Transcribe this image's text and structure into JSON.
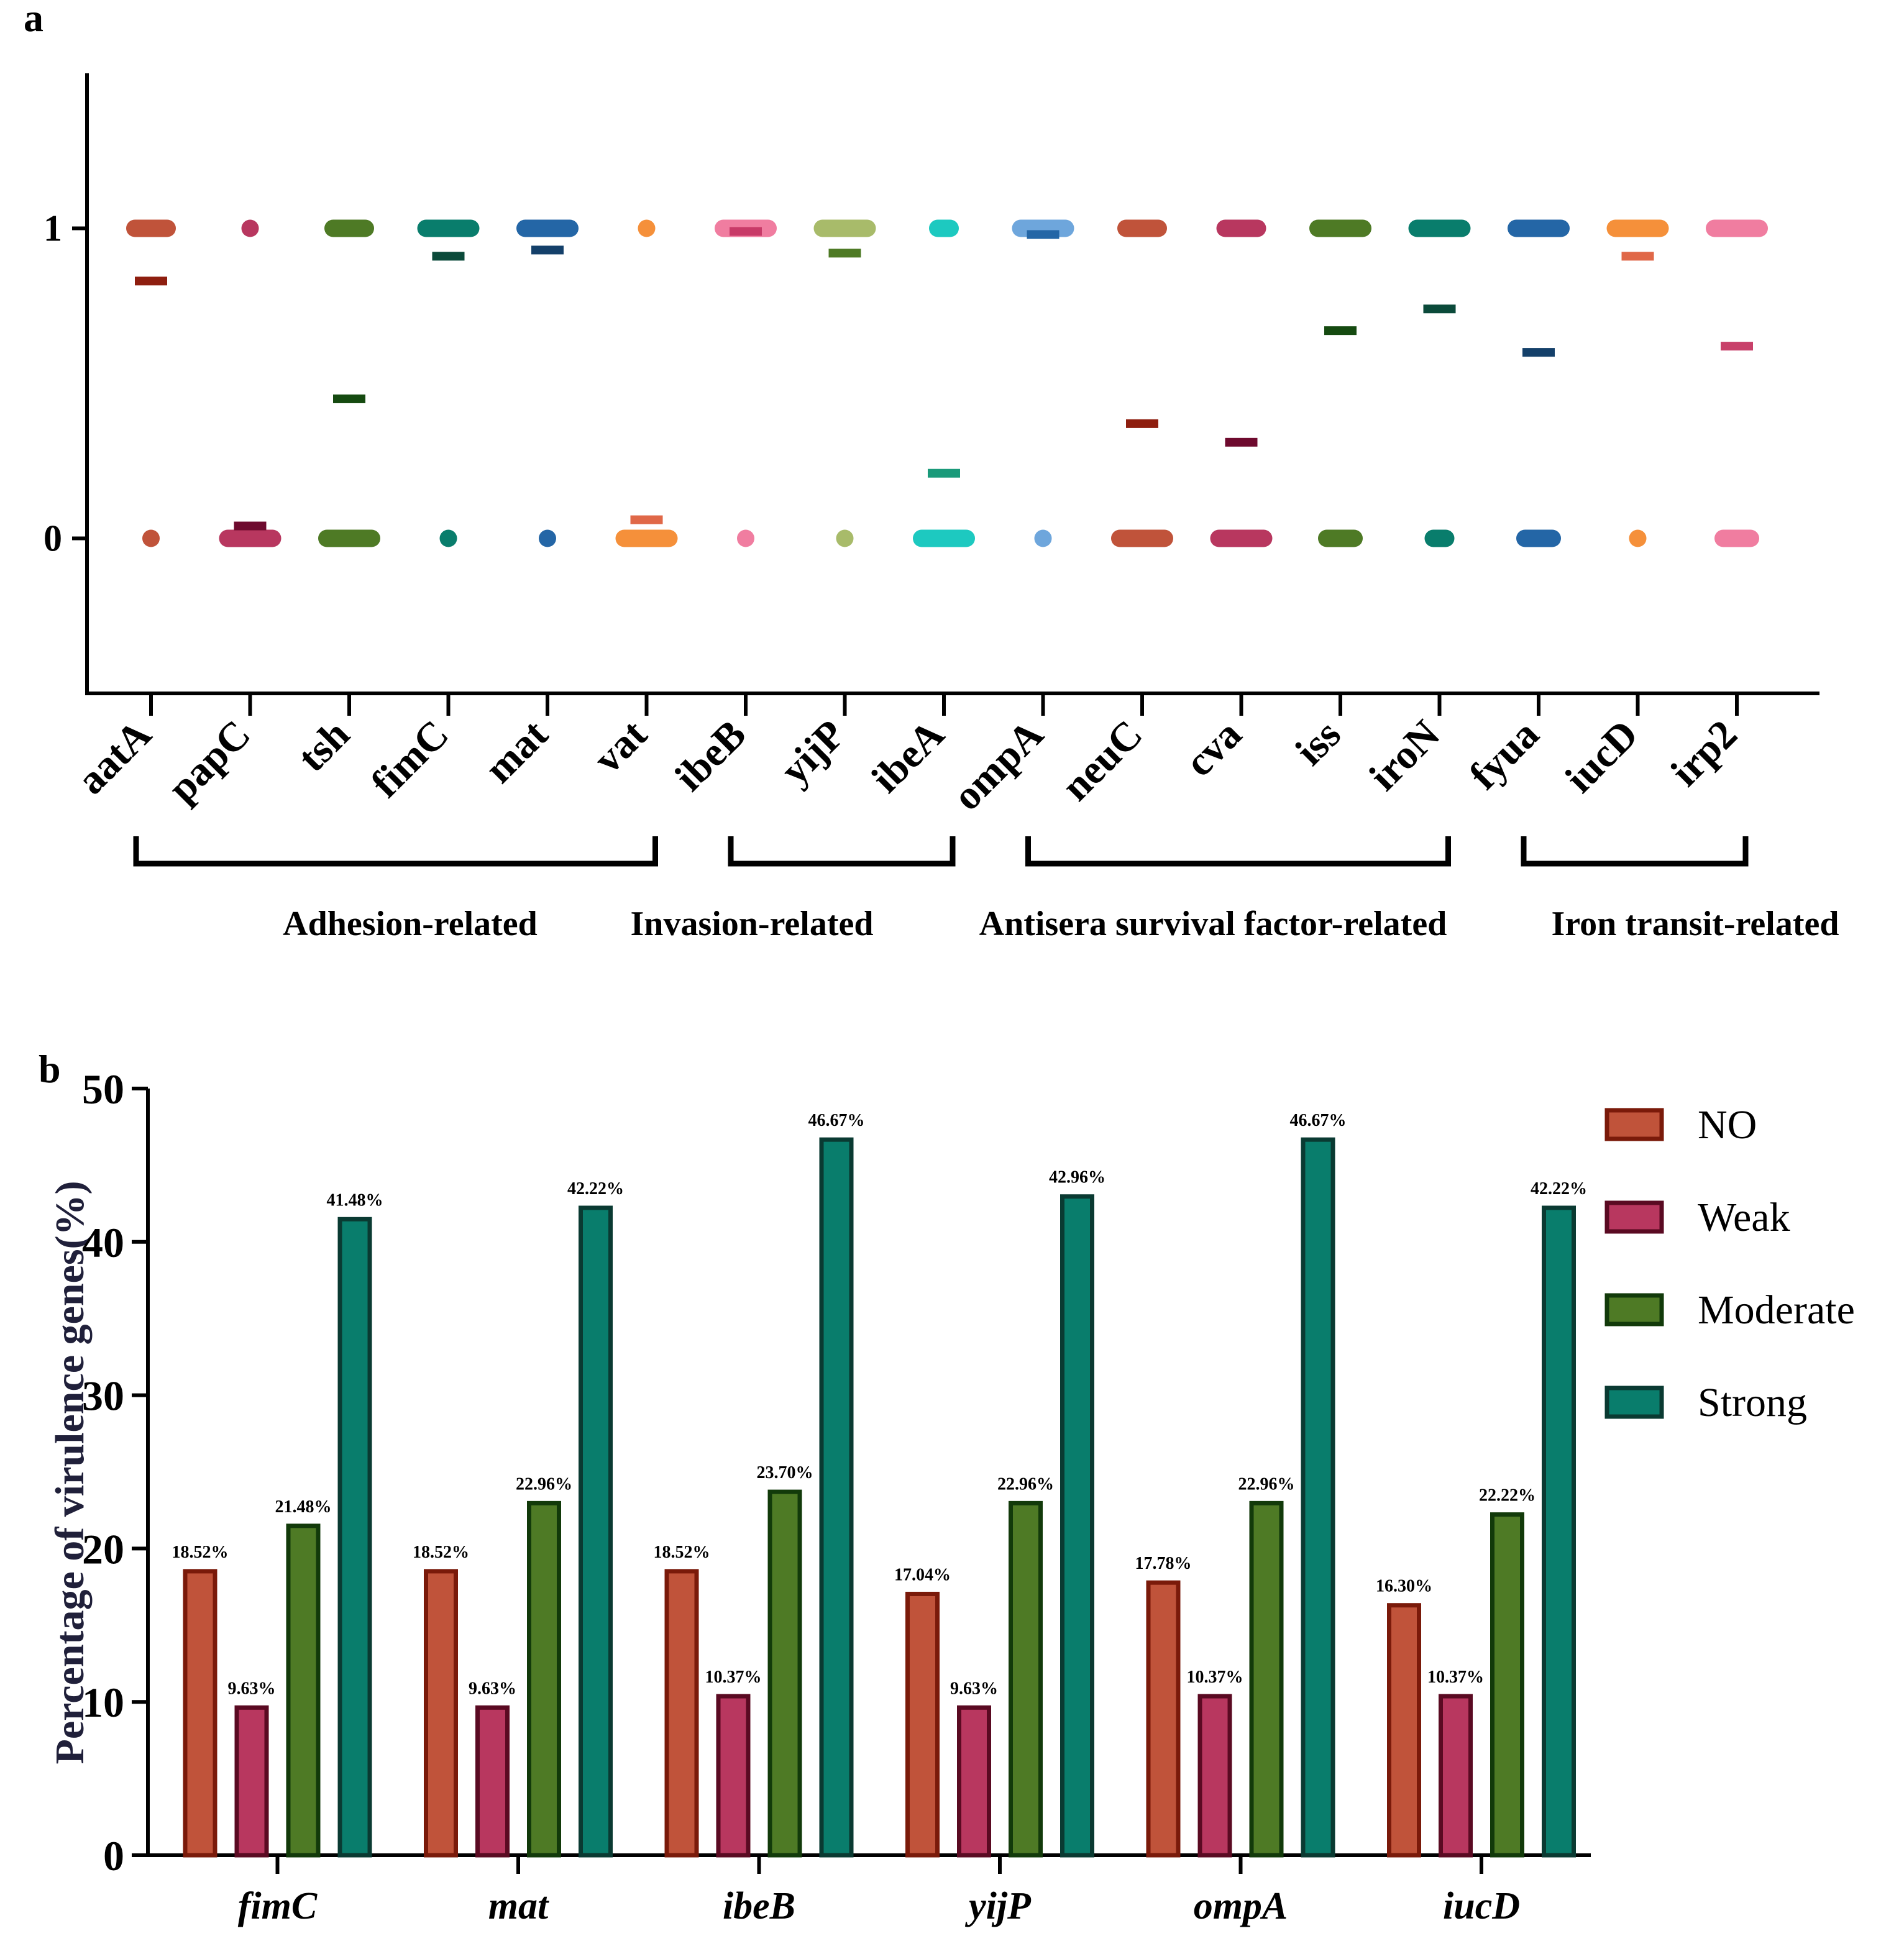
{
  "chart_data": [
    {
      "panel": "a",
      "type": "scatter",
      "title": "",
      "xlabel": "",
      "ylabel": "",
      "ylim": [
        -0.5,
        1.5
      ],
      "y_ticks": [
        "0",
        "1"
      ],
      "genes": [
        "aatA",
        "papC",
        "tsh",
        "fimC",
        "mat",
        "vat",
        "ibeB",
        "yijP",
        "ibeA",
        "ompA",
        "neuC",
        "cva",
        "iss",
        "iroN",
        "fyua",
        "iucD",
        "irp2"
      ],
      "colors": [
        "#c0533a",
        "#b8375f",
        "#4e7a25",
        "#097d6c",
        "#2466a6",
        "#f5903a",
        "#f07da0",
        "#a8bb6a",
        "#1dc9c0",
        "#6ea6dc",
        "#c0533a",
        "#b8375f",
        "#4e7a25",
        "#097d6c",
        "#2466a6",
        "#f5903a",
        "#f07da0"
      ],
      "mean_colors": [
        "#8e1e0f",
        "#6e0a2e",
        "#154a10",
        "#0b4a3a",
        "#14406a",
        "#e06848",
        "#c83a68",
        "#4e7a25",
        "#1a9a7a",
        "#2466a6",
        "#8e1e0f",
        "#6e0a2e",
        "#154a10",
        "#0b4a3a",
        "#14406a",
        "#e06848",
        "#c8416a"
      ],
      "count_at_1": [
        3,
        1,
        3,
        4,
        4,
        1,
        4,
        4,
        2,
        4,
        3,
        3,
        4,
        4,
        4,
        4,
        4
      ],
      "count_at_0": [
        1,
        4,
        4,
        1,
        1,
        4,
        1,
        1,
        4,
        1,
        4,
        4,
        3,
        2,
        3,
        1,
        3
      ],
      "means": [
        0.83,
        0.04,
        0.45,
        0.91,
        0.93,
        0.06,
        0.99,
        0.92,
        0.21,
        0.98,
        0.37,
        0.31,
        0.67,
        0.74,
        0.6,
        0.91,
        0.62
      ],
      "groups": [
        {
          "label": "Adhesion-related",
          "from": 0,
          "to": 5
        },
        {
          "label": "Invasion-related",
          "from": 6,
          "to": 8
        },
        {
          "label": "Antisera survival factor-related",
          "from": 9,
          "to": 13
        },
        {
          "label": "Iron transit-related",
          "from": 14,
          "to": 16
        }
      ]
    },
    {
      "panel": "b",
      "type": "bar",
      "title": "",
      "xlabel": "",
      "ylabel": "Percentage of virulence genes(%)",
      "ylim": [
        0,
        50
      ],
      "y_ticks": [
        "0",
        "10",
        "20",
        "30",
        "40",
        "50"
      ],
      "categories": [
        "fimC",
        "mat",
        "ibeB",
        "yijP",
        "ompA",
        "iucD"
      ],
      "series": [
        {
          "name": "NO",
          "color": "#c0533a",
          "edge": "#7a1a0a",
          "values": [
            18.52,
            18.52,
            18.52,
            17.04,
            17.78,
            16.3
          ],
          "labels": [
            "18.52%",
            "18.52%",
            "18.52%",
            "17.04%",
            "17.78%",
            "16.30%"
          ]
        },
        {
          "name": "Weak",
          "color": "#b8375f",
          "edge": "#5a0a22",
          "values": [
            9.63,
            9.63,
            10.37,
            9.63,
            10.37,
            10.37
          ],
          "labels": [
            "9.63%",
            "9.63%",
            "10.37%",
            "9.63%",
            "10.37%",
            "10.37%"
          ]
        },
        {
          "name": "Moderate",
          "color": "#4e7a25",
          "edge": "#123a0a",
          "values": [
            21.48,
            22.96,
            23.7,
            22.96,
            22.96,
            22.22
          ],
          "labels": [
            "21.48%",
            "22.96%",
            "23.70%",
            "22.96%",
            "22.96%",
            "22.22%"
          ]
        },
        {
          "name": "Strong",
          "color": "#097d6c",
          "edge": "#0a3a32",
          "values": [
            41.48,
            42.22,
            46.67,
            42.96,
            46.67,
            42.22
          ],
          "labels": [
            "41.48%",
            "42.22%",
            "46.67%",
            "42.96%",
            "46.67%",
            "42.22%"
          ]
        }
      ],
      "legend_position": "top-right"
    }
  ]
}
